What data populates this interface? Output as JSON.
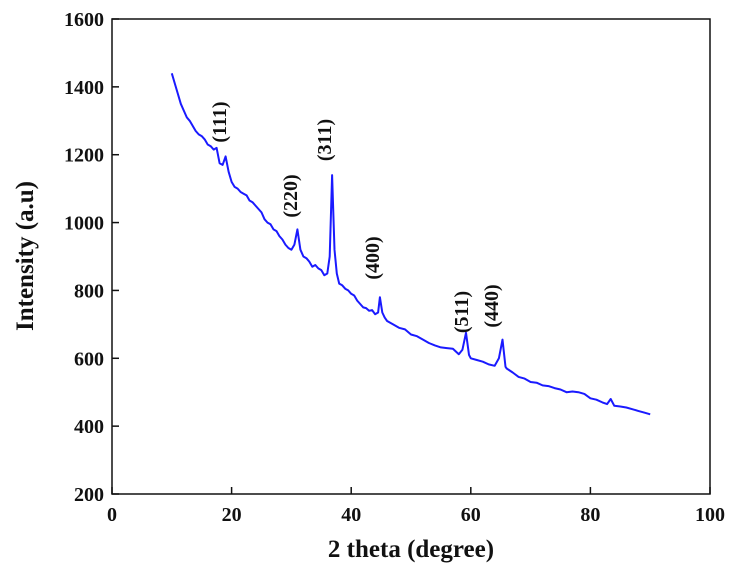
{
  "chart_data": {
    "type": "line",
    "x_label": "2 theta (degree)",
    "y_label": "Intensity (a.u)",
    "xlim": [
      0,
      100
    ],
    "xticks": [
      0,
      20,
      40,
      60,
      80,
      100
    ],
    "ylim": [
      200,
      1600
    ],
    "yticks": [
      200,
      400,
      600,
      800,
      1000,
      1200,
      1400,
      1600
    ],
    "annotations": [
      "(111)",
      "(220)",
      "(311)",
      "(400)",
      "(511)",
      "(440)"
    ],
    "series": [
      {
        "color": "#1a1aff",
        "x": [
          10,
          10.5,
          11,
          11.5,
          12,
          12.5,
          13,
          13.5,
          14,
          14.5,
          15,
          15.5,
          16,
          16.5,
          17,
          17.5,
          18,
          18.5,
          19,
          19.5,
          20,
          20.5,
          21,
          21.5,
          22,
          22.5,
          23,
          23.5,
          24,
          24.5,
          25,
          25.5,
          26,
          26.5,
          27,
          27.5,
          28,
          28.5,
          29,
          29.5,
          30,
          30.5,
          31,
          31.5,
          32,
          32.5,
          33,
          33.5,
          34,
          34.5,
          35,
          35.5,
          36,
          36.4,
          36.8,
          37.2,
          37.6,
          38,
          38.5,
          39,
          39.5,
          40,
          40.5,
          41,
          41.5,
          42,
          42.5,
          43,
          43.5,
          44,
          44.5,
          44.8,
          45.2,
          45.6,
          46,
          47,
          48,
          49,
          50,
          51,
          52,
          53,
          54,
          55,
          56,
          57,
          58,
          58.6,
          59.2,
          59.7,
          60,
          61,
          62,
          63,
          64,
          64.7,
          65.3,
          65.8,
          66,
          67,
          68,
          69,
          70,
          71,
          72,
          73,
          74,
          75,
          76,
          77,
          78,
          79,
          80,
          81,
          82,
          82.8,
          83.4,
          84,
          85,
          86,
          87,
          88,
          89,
          90
        ],
        "values": [
          1440,
          1410,
          1380,
          1350,
          1330,
          1310,
          1300,
          1285,
          1270,
          1260,
          1255,
          1245,
          1230,
          1225,
          1215,
          1220,
          1175,
          1170,
          1195,
          1150,
          1120,
          1105,
          1100,
          1090,
          1085,
          1080,
          1065,
          1060,
          1050,
          1040,
          1030,
          1010,
          1000,
          995,
          980,
          975,
          960,
          950,
          935,
          925,
          920,
          935,
          980,
          920,
          900,
          895,
          885,
          870,
          875,
          865,
          860,
          845,
          850,
          900,
          1140,
          920,
          850,
          820,
          815,
          805,
          800,
          790,
          785,
          770,
          760,
          750,
          748,
          740,
          742,
          730,
          735,
          780,
          735,
          720,
          710,
          700,
          690,
          685,
          670,
          665,
          655,
          645,
          638,
          632,
          630,
          628,
          612,
          625,
          675,
          610,
          600,
          595,
          590,
          582,
          578,
          600,
          655,
          575,
          570,
          558,
          545,
          540,
          530,
          528,
          520,
          518,
          512,
          508,
          500,
          502,
          500,
          495,
          482,
          478,
          470,
          465,
          480,
          460,
          458,
          455,
          450,
          445,
          440,
          435
        ]
      }
    ]
  }
}
